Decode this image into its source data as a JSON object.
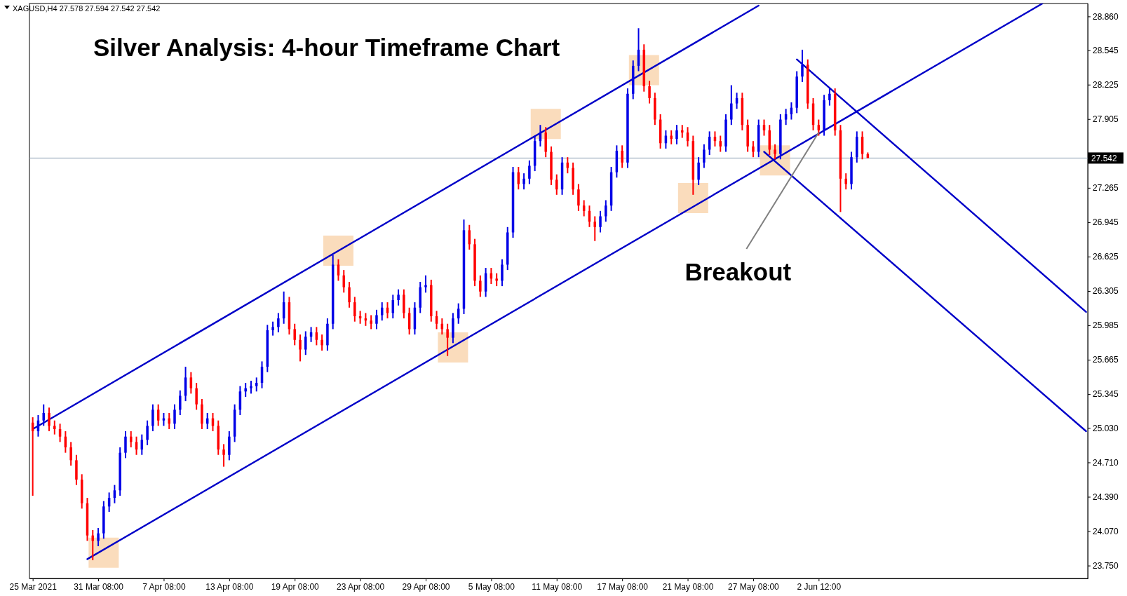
{
  "chart_data": {
    "type": "candlestick",
    "title": "Silver Analysis: 4-hour Timeframe Chart",
    "subtitle": "XAGUSD,H4 27.578 27.594 27.542 27.542",
    "categories": [
      "25 Mar 2021",
      null,
      null,
      null,
      null,
      null,
      null,
      null,
      null,
      null,
      null,
      null,
      "31 Mar 08:00",
      null,
      null,
      null,
      null,
      null,
      null,
      null,
      null,
      null,
      null,
      null,
      "7 Apr 08:00",
      null,
      null,
      null,
      null,
      null,
      null,
      null,
      null,
      null,
      null,
      null,
      "13 Apr 08:00",
      null,
      null,
      null,
      null,
      null,
      null,
      null,
      null,
      null,
      null,
      null,
      "19 Apr 08:00",
      null,
      null,
      null,
      null,
      null,
      null,
      null,
      null,
      null,
      null,
      null,
      "23 Apr 08:00",
      null,
      null,
      null,
      null,
      null,
      null,
      null,
      null,
      null,
      null,
      null,
      "29 Apr 08:00",
      null,
      null,
      null,
      null,
      null,
      null,
      null,
      null,
      null,
      null,
      null,
      "5 May 08:00",
      null,
      null,
      null,
      null,
      null,
      null,
      null,
      null,
      null,
      null,
      null,
      "11 May 08:00",
      null,
      null,
      null,
      null,
      null,
      null,
      null,
      null,
      null,
      null,
      null,
      "17 May 08:00",
      null,
      null,
      null,
      null,
      null,
      null,
      null,
      null,
      null,
      null,
      null,
      "21 May 08:00",
      null,
      null,
      null,
      null,
      null,
      null,
      null,
      null,
      null,
      null,
      null,
      "27 May 08:00",
      null,
      null,
      null,
      null,
      null,
      null,
      null,
      null,
      null,
      null,
      null,
      "2 Jun 12:00",
      null,
      null,
      null,
      null,
      null,
      null,
      null,
      null,
      null,
      null,
      null,
      null,
      null,
      null,
      null,
      null,
      null,
      null,
      null,
      null,
      null,
      null,
      null,
      null,
      null,
      null,
      null,
      null,
      null,
      null,
      null,
      null,
      null,
      null,
      null,
      null,
      null,
      null,
      null,
      null,
      null,
      null,
      null,
      null,
      null,
      null,
      null,
      null,
      null
    ],
    "ohlc": [
      [
        25.08,
        25.13,
        24.4,
        25.0
      ],
      [
        25.0,
        25.15,
        24.95,
        25.1
      ],
      [
        25.1,
        25.25,
        25.05,
        25.17
      ],
      [
        25.17,
        25.22,
        25.0,
        25.05
      ],
      [
        25.05,
        25.1,
        24.97,
        25.02
      ],
      [
        25.02,
        25.07,
        24.9,
        24.95
      ],
      [
        24.95,
        25.0,
        24.8,
        24.85
      ],
      [
        24.85,
        24.9,
        24.68,
        24.73
      ],
      [
        24.73,
        24.78,
        24.5,
        24.55
      ],
      [
        24.55,
        24.6,
        24.28,
        24.33
      ],
      [
        24.33,
        24.38,
        23.98,
        24.03
      ],
      [
        24.03,
        24.08,
        23.8,
        23.98
      ],
      [
        23.98,
        24.1,
        23.93,
        24.05
      ],
      [
        24.05,
        24.35,
        24.0,
        24.3
      ],
      [
        24.3,
        24.43,
        24.25,
        24.38
      ],
      [
        24.38,
        24.5,
        24.33,
        24.45
      ],
      [
        24.45,
        24.85,
        24.4,
        24.8
      ],
      [
        24.8,
        25.0,
        24.75,
        24.95
      ],
      [
        24.95,
        25.0,
        24.85,
        24.9
      ],
      [
        24.9,
        24.95,
        24.78,
        24.83
      ],
      [
        24.83,
        24.97,
        24.78,
        24.92
      ],
      [
        24.92,
        25.1,
        24.87,
        25.05
      ],
      [
        25.05,
        25.25,
        25.0,
        25.2
      ],
      [
        25.2,
        25.25,
        25.05,
        25.1
      ],
      [
        25.1,
        25.17,
        25.05,
        25.12
      ],
      [
        25.12,
        25.17,
        25.02,
        25.07
      ],
      [
        25.07,
        25.25,
        25.02,
        25.2
      ],
      [
        25.2,
        25.38,
        25.15,
        25.33
      ],
      [
        25.33,
        25.6,
        25.28,
        25.5
      ],
      [
        25.5,
        25.55,
        25.35,
        25.4
      ],
      [
        25.4,
        25.45,
        25.2,
        25.25
      ],
      [
        25.25,
        25.3,
        25.02,
        25.07
      ],
      [
        25.07,
        25.17,
        25.02,
        25.12
      ],
      [
        25.12,
        25.17,
        25.0,
        25.05
      ],
      [
        25.05,
        25.1,
        24.78,
        24.83
      ],
      [
        24.83,
        24.88,
        24.67,
        24.78
      ],
      [
        24.78,
        25.0,
        24.73,
        24.95
      ],
      [
        24.95,
        25.25,
        24.9,
        25.2
      ],
      [
        25.2,
        25.42,
        25.15,
        25.37
      ],
      [
        25.37,
        25.45,
        25.32,
        25.4
      ],
      [
        25.4,
        25.47,
        25.35,
        25.42
      ],
      [
        25.42,
        25.5,
        25.37,
        25.45
      ],
      [
        25.45,
        25.65,
        25.4,
        25.6
      ],
      [
        25.6,
        25.99,
        25.55,
        25.94
      ],
      [
        25.94,
        26.02,
        25.89,
        25.97
      ],
      [
        25.97,
        26.1,
        25.92,
        26.05
      ],
      [
        26.05,
        26.3,
        26.0,
        26.2
      ],
      [
        26.2,
        26.25,
        25.9,
        25.95
      ],
      [
        25.95,
        26.0,
        25.8,
        25.85
      ],
      [
        25.85,
        25.9,
        25.65,
        25.76
      ],
      [
        25.76,
        25.93,
        25.71,
        25.88
      ],
      [
        25.88,
        25.97,
        25.83,
        25.92
      ],
      [
        25.92,
        25.97,
        25.8,
        25.85
      ],
      [
        25.85,
        25.9,
        25.75,
        25.8
      ],
      [
        25.8,
        26.05,
        25.75,
        26.0
      ],
      [
        26.0,
        26.64,
        25.95,
        26.55
      ],
      [
        26.55,
        26.6,
        26.4,
        26.45
      ],
      [
        26.45,
        26.5,
        26.29,
        26.34
      ],
      [
        26.34,
        26.39,
        26.15,
        26.2
      ],
      [
        26.2,
        26.25,
        26.02,
        26.07
      ],
      [
        26.07,
        26.12,
        26.0,
        26.05
      ],
      [
        26.05,
        26.1,
        25.98,
        26.03
      ],
      [
        26.03,
        26.08,
        25.95,
        26.0
      ],
      [
        26.0,
        26.13,
        25.95,
        26.08
      ],
      [
        26.08,
        26.2,
        26.03,
        26.15
      ],
      [
        26.15,
        26.2,
        26.05,
        26.1
      ],
      [
        26.1,
        26.27,
        26.05,
        26.22
      ],
      [
        26.22,
        26.32,
        26.17,
        26.27
      ],
      [
        26.27,
        26.32,
        26.05,
        26.1
      ],
      [
        26.1,
        26.15,
        25.9,
        25.95
      ],
      [
        25.95,
        26.2,
        25.9,
        26.15
      ],
      [
        26.15,
        26.39,
        26.1,
        26.34
      ],
      [
        26.34,
        26.45,
        26.29,
        26.36
      ],
      [
        26.36,
        26.41,
        26.02,
        26.07
      ],
      [
        26.07,
        26.12,
        25.95,
        26.0
      ],
      [
        26.0,
        26.05,
        25.9,
        25.95
      ],
      [
        25.95,
        26.0,
        25.7,
        25.87
      ],
      [
        25.87,
        26.1,
        25.82,
        26.05
      ],
      [
        26.05,
        26.19,
        26.0,
        26.14
      ],
      [
        26.14,
        26.97,
        26.09,
        26.87
      ],
      [
        26.87,
        26.92,
        26.69,
        26.74
      ],
      [
        26.74,
        26.79,
        26.35,
        26.4
      ],
      [
        26.4,
        26.45,
        26.25,
        26.3
      ],
      [
        26.3,
        26.52,
        26.25,
        26.47
      ],
      [
        26.47,
        26.52,
        26.37,
        26.42
      ],
      [
        26.42,
        26.47,
        26.35,
        26.4
      ],
      [
        26.4,
        26.6,
        26.35,
        26.55
      ],
      [
        26.55,
        26.9,
        26.5,
        26.85
      ],
      [
        26.85,
        27.46,
        26.8,
        27.41
      ],
      [
        27.41,
        27.46,
        27.25,
        27.3
      ],
      [
        27.3,
        27.4,
        27.25,
        27.35
      ],
      [
        27.35,
        27.52,
        27.3,
        27.47
      ],
      [
        27.47,
        27.75,
        27.42,
        27.7
      ],
      [
        27.7,
        27.85,
        27.65,
        27.78
      ],
      [
        27.78,
        27.83,
        27.55,
        27.6
      ],
      [
        27.6,
        27.65,
        27.29,
        27.34
      ],
      [
        27.34,
        27.39,
        27.2,
        27.25
      ],
      [
        27.25,
        27.55,
        27.2,
        27.5
      ],
      [
        27.5,
        27.55,
        27.4,
        27.45
      ],
      [
        27.45,
        27.5,
        27.2,
        27.25
      ],
      [
        27.25,
        27.3,
        27.05,
        27.1
      ],
      [
        27.1,
        27.15,
        27.0,
        27.05
      ],
      [
        27.05,
        27.1,
        26.9,
        26.95
      ],
      [
        26.95,
        27.0,
        26.77,
        26.9
      ],
      [
        26.9,
        27.05,
        26.85,
        27.0
      ],
      [
        27.0,
        27.15,
        26.95,
        27.1
      ],
      [
        27.1,
        27.46,
        27.05,
        27.41
      ],
      [
        27.41,
        27.66,
        27.36,
        27.61
      ],
      [
        27.61,
        27.66,
        27.45,
        27.5
      ],
      [
        27.5,
        28.19,
        27.45,
        28.14
      ],
      [
        28.14,
        28.45,
        28.09,
        28.4
      ],
      [
        28.4,
        28.75,
        28.35,
        28.55
      ],
      [
        28.55,
        28.6,
        28.16,
        28.21
      ],
      [
        28.21,
        28.26,
        28.05,
        28.1
      ],
      [
        28.1,
        28.15,
        27.85,
        27.9
      ],
      [
        27.9,
        27.95,
        27.63,
        27.68
      ],
      [
        27.68,
        27.8,
        27.63,
        27.75
      ],
      [
        27.75,
        27.8,
        27.67,
        27.72
      ],
      [
        27.72,
        27.85,
        27.67,
        27.8
      ],
      [
        27.8,
        27.85,
        27.73,
        27.78
      ],
      [
        27.78,
        27.83,
        27.65,
        27.7
      ],
      [
        27.7,
        27.75,
        27.2,
        27.34
      ],
      [
        27.34,
        27.55,
        27.29,
        27.5
      ],
      [
        27.5,
        27.67,
        27.45,
        27.62
      ],
      [
        27.62,
        27.79,
        27.57,
        27.74
      ],
      [
        27.74,
        27.79,
        27.65,
        27.7
      ],
      [
        27.7,
        27.75,
        27.6,
        27.65
      ],
      [
        27.65,
        27.95,
        27.6,
        27.9
      ],
      [
        27.9,
        28.22,
        27.85,
        28.05
      ],
      [
        28.05,
        28.15,
        28.0,
        28.1
      ],
      [
        28.1,
        28.15,
        27.8,
        27.85
      ],
      [
        27.85,
        27.9,
        27.6,
        27.65
      ],
      [
        27.65,
        27.7,
        27.55,
        27.6
      ],
      [
        27.6,
        27.9,
        27.55,
        27.85
      ],
      [
        27.85,
        27.9,
        27.75,
        27.8
      ],
      [
        27.8,
        27.85,
        27.57,
        27.62
      ],
      [
        27.62,
        27.67,
        27.53,
        27.58
      ],
      [
        27.58,
        27.95,
        27.53,
        27.9
      ],
      [
        27.9,
        28.0,
        27.85,
        27.95
      ],
      [
        27.95,
        28.06,
        27.9,
        28.01
      ],
      [
        28.01,
        28.35,
        27.96,
        28.3
      ],
      [
        28.3,
        28.55,
        28.25,
        28.41
      ],
      [
        28.41,
        28.46,
        28.0,
        28.05
      ],
      [
        28.05,
        28.1,
        27.8,
        27.85
      ],
      [
        27.85,
        27.9,
        27.75,
        27.8
      ],
      [
        27.8,
        28.13,
        27.75,
        28.08
      ],
      [
        28.08,
        28.19,
        28.03,
        28.14
      ],
      [
        28.14,
        28.19,
        27.75,
        27.8
      ],
      [
        27.8,
        27.85,
        27.04,
        27.35
      ],
      [
        27.35,
        27.4,
        27.25,
        27.3
      ],
      [
        27.3,
        27.6,
        27.25,
        27.55
      ],
      [
        27.55,
        27.79,
        27.5,
        27.74
      ],
      [
        27.74,
        27.79,
        27.53,
        27.58
      ],
      [
        27.578,
        27.594,
        27.542,
        27.542
      ],
      null,
      null,
      null,
      null,
      null,
      null,
      null,
      null,
      null,
      null,
      null,
      null,
      null,
      null,
      null,
      null,
      null,
      null,
      null,
      null,
      null,
      null,
      null,
      null,
      null,
      null,
      null,
      null,
      null,
      null,
      null,
      null,
      null,
      null,
      null,
      null,
      null,
      null,
      null,
      null
    ],
    "series": [
      {
        "type": "line",
        "color": "#0000c8",
        "values": [
          25.02,
          null,
          null,
          null,
          null,
          null,
          null,
          null,
          null,
          null,
          null,
          null,
          null,
          null,
          null,
          null,
          null,
          null,
          null,
          null,
          null,
          null,
          null,
          null,
          null,
          null,
          null,
          null,
          null,
          null,
          null,
          null,
          null,
          null,
          null,
          null,
          null,
          null,
          null,
          null,
          null,
          null,
          null,
          null,
          null,
          null,
          null,
          null,
          null,
          null,
          null,
          null,
          null,
          null,
          null,
          null,
          null,
          null,
          null,
          null,
          null,
          null,
          null,
          null,
          null,
          null,
          null,
          null,
          null,
          null,
          null,
          null,
          null,
          null,
          null,
          null,
          null,
          null,
          null,
          null,
          null,
          null,
          null,
          null,
          null,
          null,
          null,
          null,
          null,
          null,
          null,
          null,
          null,
          null,
          null,
          null,
          null,
          null,
          null,
          null,
          null,
          null,
          null,
          null,
          null,
          null,
          null,
          null,
          null,
          null,
          null,
          null,
          null,
          null,
          null,
          null,
          null,
          null,
          null,
          null,
          null,
          null,
          null,
          null,
          null,
          null,
          null,
          null,
          null,
          null,
          null,
          null,
          null,
          28.96,
          null,
          null,
          null,
          null,
          null,
          null,
          null,
          null,
          null,
          null,
          null,
          null,
          null,
          null,
          null,
          null,
          null,
          null,
          null,
          null,
          null,
          null,
          null,
          null,
          null,
          null,
          null,
          null,
          null,
          null,
          null,
          null,
          null,
          null,
          null,
          null,
          null,
          null,
          null,
          null,
          null,
          null,
          null,
          null,
          null,
          null,
          null,
          null,
          null,
          null,
          null,
          null,
          null,
          null,
          null,
          null,
          null,
          null,
          null,
          null
        ]
      },
      {
        "type": "line",
        "color": "#0000c8",
        "values": [
          null,
          null,
          null,
          null,
          null,
          null,
          null,
          null,
          null,
          null,
          23.81,
          null,
          null,
          null,
          null,
          null,
          null,
          null,
          null,
          null,
          null,
          null,
          null,
          null,
          null,
          null,
          null,
          null,
          null,
          null,
          null,
          null,
          null,
          null,
          null,
          null,
          null,
          null,
          null,
          null,
          null,
          null,
          null,
          null,
          null,
          null,
          null,
          null,
          null,
          null,
          null,
          null,
          null,
          null,
          null,
          null,
          null,
          null,
          null,
          null,
          null,
          null,
          null,
          null,
          null,
          null,
          null,
          null,
          null,
          null,
          null,
          null,
          null,
          null,
          null,
          null,
          null,
          null,
          null,
          null,
          null,
          null,
          null,
          null,
          null,
          null,
          null,
          null,
          null,
          null,
          null,
          null,
          null,
          null,
          null,
          null,
          null,
          null,
          null,
          null,
          null,
          null,
          null,
          null,
          null,
          null,
          null,
          null,
          null,
          null,
          null,
          null,
          null,
          null,
          null,
          null,
          null,
          null,
          null,
          null,
          null,
          null,
          null,
          null,
          null,
          null,
          null,
          null,
          null,
          null,
          null,
          null,
          null,
          null,
          null,
          null,
          null,
          null,
          null,
          null,
          null,
          null,
          null,
          null,
          null,
          null,
          null,
          null,
          null,
          null,
          null,
          null,
          null,
          null,
          null,
          null,
          null,
          null,
          null,
          null,
          null,
          null,
          null,
          null,
          null,
          null,
          null,
          null,
          null,
          null,
          null,
          null,
          null,
          null,
          null,
          null,
          null,
          null,
          null,
          null,
          null,
          null,
          null,
          null,
          null,
          28.98,
          null,
          null,
          null,
          null,
          null,
          null,
          null,
          null
        ]
      },
      {
        "type": "line",
        "color": "#0000c8",
        "values": [
          null,
          null,
          null,
          null,
          null,
          null,
          null,
          null,
          null,
          null,
          null,
          null,
          null,
          null,
          null,
          null,
          null,
          null,
          null,
          null,
          null,
          null,
          null,
          null,
          null,
          null,
          null,
          null,
          null,
          null,
          null,
          null,
          null,
          null,
          null,
          null,
          null,
          null,
          null,
          null,
          null,
          null,
          null,
          null,
          null,
          null,
          null,
          null,
          null,
          null,
          null,
          null,
          null,
          null,
          null,
          null,
          null,
          null,
          null,
          null,
          null,
          null,
          null,
          null,
          null,
          null,
          null,
          null,
          null,
          null,
          null,
          null,
          null,
          null,
          null,
          null,
          null,
          null,
          null,
          null,
          null,
          null,
          null,
          null,
          null,
          null,
          null,
          null,
          null,
          null,
          null,
          null,
          null,
          null,
          null,
          null,
          null,
          null,
          null,
          null,
          null,
          null,
          null,
          null,
          null,
          null,
          null,
          null,
          null,
          null,
          null,
          null,
          null,
          null,
          null,
          null,
          null,
          null,
          null,
          null,
          null,
          null,
          null,
          null,
          null,
          null,
          null,
          null,
          null,
          null,
          null,
          null,
          null,
          null,
          null,
          null,
          null,
          null,
          null,
          null,
          28.46,
          null,
          null,
          null,
          null,
          null,
          null,
          null,
          null,
          null,
          null,
          null,
          null,
          null,
          null,
          null,
          null,
          null,
          null,
          null,
          null,
          null,
          null,
          null,
          null,
          null,
          null,
          null,
          null,
          null,
          null,
          null,
          null,
          null,
          null,
          null,
          null,
          null,
          null,
          null,
          null,
          null,
          null,
          null,
          null,
          null,
          null,
          null,
          null,
          null,
          null,
          null,
          null,
          26.11
        ]
      },
      {
        "type": "line",
        "color": "#0000c8",
        "values": [
          null,
          null,
          null,
          null,
          null,
          null,
          null,
          null,
          null,
          null,
          null,
          null,
          null,
          null,
          null,
          null,
          null,
          null,
          null,
          null,
          null,
          null,
          null,
          null,
          null,
          null,
          null,
          null,
          null,
          null,
          null,
          null,
          null,
          null,
          null,
          null,
          null,
          null,
          null,
          null,
          null,
          null,
          null,
          null,
          null,
          null,
          null,
          null,
          null,
          null,
          null,
          null,
          null,
          null,
          null,
          null,
          null,
          null,
          null,
          null,
          null,
          null,
          null,
          null,
          null,
          null,
          null,
          null,
          null,
          null,
          null,
          null,
          null,
          null,
          null,
          null,
          null,
          null,
          null,
          null,
          null,
          null,
          null,
          null,
          null,
          null,
          null,
          null,
          null,
          null,
          null,
          null,
          null,
          null,
          null,
          null,
          null,
          null,
          null,
          null,
          null,
          null,
          null,
          null,
          null,
          null,
          null,
          null,
          null,
          null,
          null,
          null,
          null,
          null,
          null,
          null,
          null,
          null,
          null,
          null,
          null,
          null,
          null,
          null,
          null,
          null,
          null,
          null,
          null,
          null,
          null,
          null,
          null,
          null,
          27.6,
          null,
          null,
          null,
          null,
          null,
          null,
          null,
          null,
          null,
          null,
          null,
          null,
          null,
          null,
          null,
          null,
          null,
          null,
          null,
          null,
          null,
          null,
          null,
          null,
          null,
          null,
          null,
          null,
          null,
          null,
          null,
          null,
          null,
          null,
          null,
          null,
          null,
          null,
          null,
          null,
          null,
          null,
          null,
          null,
          null,
          null,
          null,
          null,
          null,
          null,
          null,
          null,
          null,
          null,
          null,
          null,
          null,
          null,
          25.0
        ]
      },
      {
        "type": "scatter",
        "marker": "square",
        "color": "#f7c58f",
        "values": [
          null,
          null,
          null,
          null,
          null,
          null,
          null,
          null,
          null,
          null,
          null,
          null,
          null,
          23.87,
          null,
          null,
          null,
          null,
          null,
          null,
          null,
          null,
          null,
          null,
          null,
          null,
          null,
          null,
          null,
          null,
          null,
          null,
          null,
          null,
          null,
          null,
          null,
          null,
          null,
          null,
          null,
          null,
          null,
          null,
          null,
          null,
          null,
          null,
          null,
          null,
          null,
          null,
          null,
          null,
          null,
          null,
          26.68,
          null,
          null,
          null,
          null,
          null,
          null,
          null,
          null,
          null,
          null,
          null,
          null,
          null,
          null,
          null,
          null,
          null,
          null,
          null,
          null,
          25.78,
          null,
          null,
          null,
          null,
          null,
          null,
          null,
          null,
          null,
          null,
          null,
          null,
          null,
          null,
          null,
          null,
          27.86,
          null,
          null,
          null,
          null,
          null,
          null,
          null,
          null,
          null,
          null,
          null,
          null,
          null,
          null,
          null,
          null,
          null,
          28.36,
          null,
          null,
          null,
          null,
          null,
          null,
          null,
          null,
          27.17,
          null,
          null,
          null,
          null,
          null,
          null,
          null,
          null,
          null,
          null,
          null,
          null,
          null,
          null,
          27.52,
          null,
          null,
          null,
          null,
          null,
          null,
          null,
          null,
          null,
          null,
          null,
          null,
          null,
          null,
          null,
          null,
          null,
          null,
          null,
          null,
          null,
          null,
          null,
          null,
          null,
          null,
          null,
          null,
          null,
          null,
          null,
          null,
          null,
          null,
          null,
          null,
          null,
          null,
          null,
          null,
          null,
          null,
          null,
          null,
          null,
          null,
          null,
          null,
          null,
          null,
          null,
          null,
          null,
          null,
          null,
          null,
          null
        ]
      }
    ],
    "ylim": [
      23.63,
      28.98
    ],
    "yticks": [
      {
        "value": 23.75,
        "label": "23.750"
      },
      {
        "value": 24.07,
        "label": "24.070"
      },
      {
        "value": 24.39,
        "label": "24.390"
      },
      {
        "value": 24.71,
        "label": "24.710"
      },
      {
        "value": 25.03,
        "label": "25.030"
      },
      25.345,
      25.665,
      25.985,
      26.305,
      26.625,
      26.945,
      27.265,
      {
        "value": 27.585,
        "label": null
      },
      27.905,
      28.225,
      28.545,
      {
        "value": 28.86,
        "label": "28.860"
      }
    ],
    "ref_lines": [
      {
        "axis": "y",
        "value": 27.542,
        "label": "27.542",
        "color": "#8c9fb4"
      }
    ],
    "annotations": [
      {
        "text": "Breakout",
        "x": "2 Jun 12:00",
        "y": 27.78
      }
    ],
    "grid": false
  }
}
